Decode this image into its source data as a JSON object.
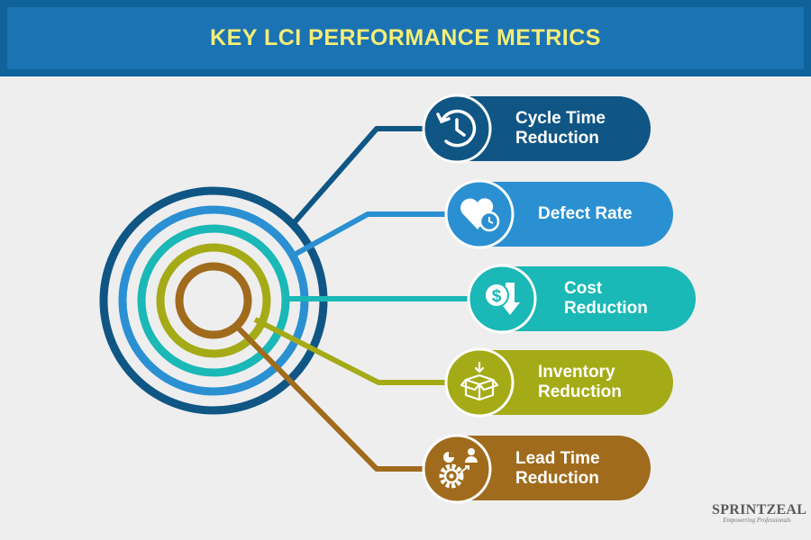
{
  "header": {
    "title": "KEY LCI PERFORMANCE METRICS"
  },
  "metrics": [
    {
      "lines": [
        "Cycle Time",
        "Reduction"
      ],
      "icon": "clock-history-icon",
      "color": "#0f5685"
    },
    {
      "lines": [
        "Defect Rate"
      ],
      "icon": "heart-stopwatch-icon",
      "color": "#2a90d2"
    },
    {
      "lines": [
        "Cost",
        "Reduction"
      ],
      "icon": "dollar-down-arrow-icon",
      "color": "#1ab8b6"
    },
    {
      "lines": [
        "Inventory",
        "Reduction"
      ],
      "icon": "box-arrow-icon",
      "color": "#a4ab16"
    },
    {
      "lines": [
        "Lead Time",
        "Reduction"
      ],
      "icon": "gear-person-icon",
      "color": "#a06b1c"
    }
  ],
  "logo": {
    "name": "SPRINTZEAL",
    "tagline": "Empowering Professionals"
  }
}
